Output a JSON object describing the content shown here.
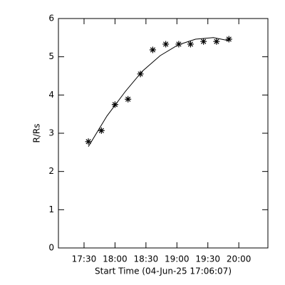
{
  "chart_data": {
    "type": "scatter",
    "xlabel": "Start Time (04-Jun-25 17:06:07)",
    "ylabel": "R/Rs",
    "xlim": [
      17.086,
      20.47
    ],
    "ylim": [
      0,
      6
    ],
    "xticks": [
      {
        "value": 17.5,
        "label": "17:30"
      },
      {
        "value": 18,
        "label": "18:00"
      },
      {
        "value": 18.5,
        "label": "18:30"
      },
      {
        "value": 19,
        "label": "19:00"
      },
      {
        "value": 19.5,
        "label": "19:30"
      },
      {
        "value": 20,
        "label": "20:00"
      }
    ],
    "yticks": [
      0,
      1,
      2,
      3,
      4,
      5,
      6
    ],
    "series": [
      {
        "color": "#000000",
        "marker": "asterisk",
        "x": [
          17.57,
          17.78,
          18.0,
          18.21,
          18.41,
          18.61,
          18.82,
          19.03,
          19.22,
          19.43,
          19.64,
          19.84
        ],
        "values": [
          2.78,
          3.07,
          3.75,
          3.89,
          4.55,
          5.18,
          5.33,
          5.33,
          5.33,
          5.4,
          5.4,
          5.46
        ]
      },
      {
        "color": "#000000",
        "marker": "line",
        "x": [
          17.57,
          17.87,
          18.17,
          18.44,
          18.73,
          19.02,
          19.3,
          19.59,
          19.84
        ],
        "values": [
          2.65,
          3.45,
          4.1,
          4.62,
          5.03,
          5.31,
          5.46,
          5.5,
          5.42
        ]
      }
    ]
  }
}
